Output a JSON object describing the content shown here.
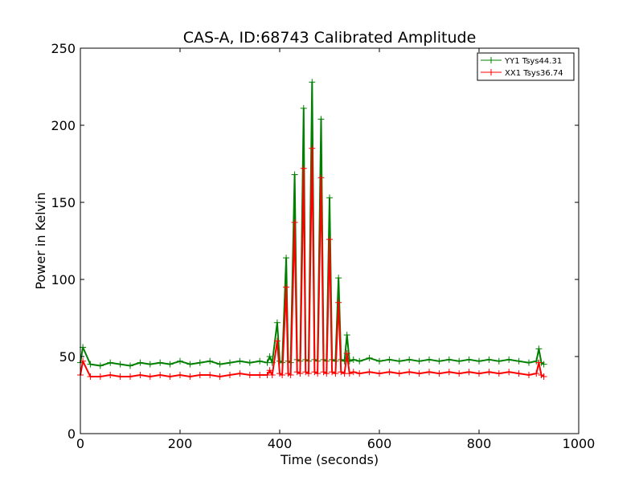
{
  "chart_data": {
    "type": "line",
    "title": "CAS-A, ID:68743 Calibrated Amplitude",
    "xlabel": "Time (seconds)",
    "ylabel": "Power in Kelvin",
    "xlim": [
      0,
      1000
    ],
    "ylim": [
      0,
      250
    ],
    "xticks": [
      "0",
      "200",
      "400",
      "600",
      "800",
      "1000"
    ],
    "yticks": [
      "0",
      "50",
      "100",
      "150",
      "200",
      "250"
    ],
    "grid": false,
    "legend_position": "top-right",
    "marker": "+",
    "series": [
      {
        "name": "YY1 Tsys44.31",
        "color": "#008000",
        "x": [
          0,
          5,
          20,
          40,
          60,
          80,
          100,
          120,
          140,
          160,
          180,
          200,
          220,
          240,
          260,
          280,
          300,
          320,
          340,
          360,
          375,
          380,
          385,
          395,
          400,
          405,
          413,
          417,
          422,
          430,
          435,
          441,
          448,
          452,
          458,
          465,
          470,
          476,
          483,
          488,
          494,
          500,
          505,
          512,
          518,
          523,
          530,
          535,
          540,
          548,
          560,
          580,
          600,
          620,
          640,
          660,
          680,
          700,
          720,
          740,
          760,
          780,
          800,
          820,
          840,
          860,
          880,
          900,
          915,
          920,
          925,
          930
        ],
        "y": [
          46,
          56,
          45,
          44,
          46,
          45,
          44,
          46,
          45,
          46,
          45,
          47,
          45,
          46,
          47,
          45,
          46,
          47,
          46,
          47,
          46,
          50,
          46,
          72,
          47,
          46,
          114,
          47,
          46,
          168,
          48,
          47,
          211,
          48,
          47,
          228,
          48,
          47,
          204,
          48,
          47,
          153,
          48,
          47,
          101,
          48,
          47,
          64,
          47,
          48,
          47,
          49,
          47,
          48,
          47,
          48,
          47,
          48,
          47,
          48,
          47,
          48,
          47,
          48,
          47,
          48,
          47,
          46,
          47,
          55,
          46,
          45
        ]
      },
      {
        "name": "XX1 Tsys36.74",
        "color": "#ff0000",
        "x": [
          0,
          5,
          20,
          40,
          60,
          80,
          100,
          120,
          140,
          160,
          180,
          200,
          220,
          240,
          260,
          280,
          300,
          320,
          340,
          360,
          375,
          380,
          385,
          395,
          400,
          405,
          413,
          417,
          422,
          430,
          435,
          441,
          448,
          452,
          458,
          465,
          470,
          476,
          483,
          488,
          494,
          500,
          505,
          512,
          518,
          523,
          530,
          535,
          540,
          548,
          560,
          580,
          600,
          620,
          640,
          660,
          680,
          700,
          720,
          740,
          760,
          780,
          800,
          820,
          840,
          860,
          880,
          900,
          915,
          920,
          925,
          930
        ],
        "y": [
          38,
          47,
          37,
          37,
          38,
          37,
          37,
          38,
          37,
          38,
          37,
          38,
          37,
          38,
          38,
          37,
          38,
          39,
          38,
          38,
          38,
          41,
          38,
          60,
          39,
          38,
          95,
          39,
          38,
          137,
          40,
          39,
          172,
          40,
          39,
          185,
          40,
          39,
          166,
          40,
          39,
          126,
          40,
          39,
          85,
          40,
          39,
          52,
          39,
          40,
          39,
          40,
          39,
          40,
          39,
          40,
          39,
          40,
          39,
          40,
          39,
          40,
          39,
          40,
          39,
          40,
          39,
          38,
          39,
          46,
          38,
          37
        ]
      }
    ]
  }
}
